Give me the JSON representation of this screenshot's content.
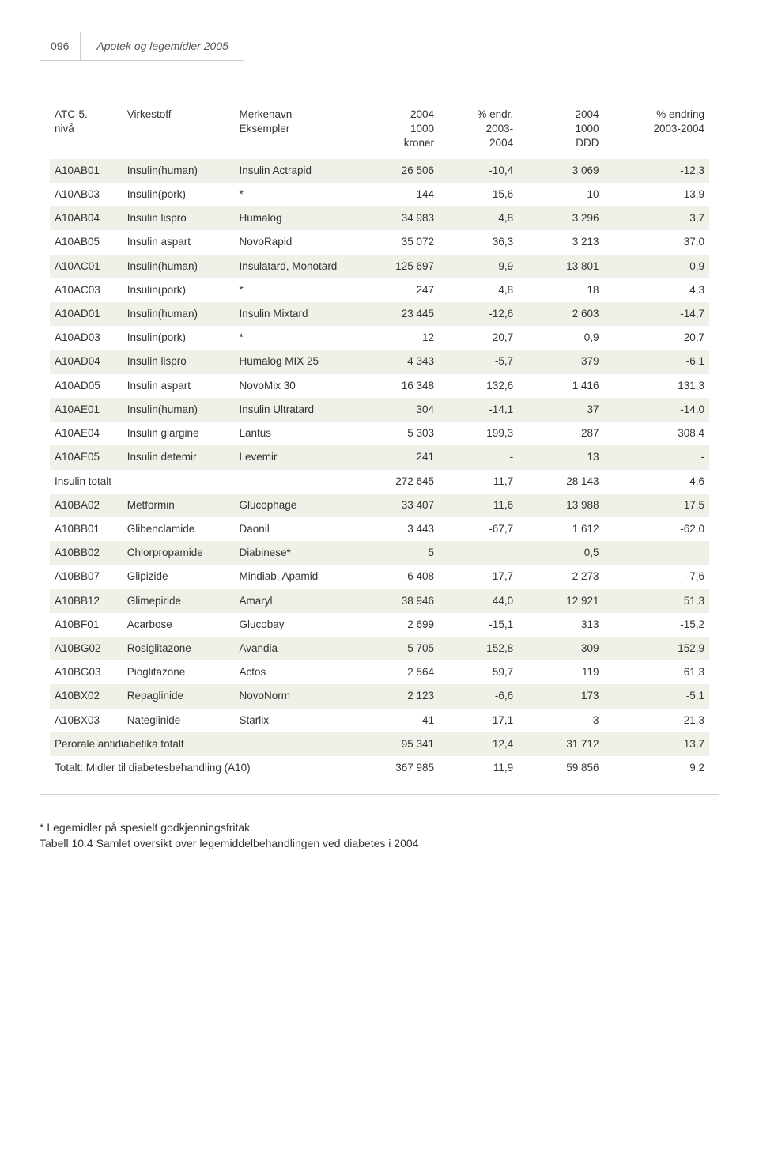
{
  "header": {
    "page_number": "096",
    "title": "Apotek og legemidler 2005"
  },
  "table": {
    "type": "table",
    "background_color": "#ffffff",
    "band_color": "#eef1e7",
    "border_color": "#d0d0d0",
    "text_color": "#333333",
    "font_size": 13.5,
    "columns": [
      {
        "lines": [
          "ATC-5.",
          "nivå"
        ],
        "align": "left"
      },
      {
        "lines": [
          "Virkestoff"
        ],
        "align": "left"
      },
      {
        "lines": [
          "Merkenavn",
          "Eksempler"
        ],
        "align": "left"
      },
      {
        "lines": [
          "2004",
          "1000",
          "kroner"
        ],
        "align": "right"
      },
      {
        "lines": [
          "% endr.",
          "2003-",
          "2004"
        ],
        "align": "right"
      },
      {
        "lines": [
          "2004",
          "1000",
          "DDD"
        ],
        "align": "right"
      },
      {
        "lines": [
          "% endring",
          "2003-2004"
        ],
        "align": "right"
      }
    ],
    "rows": [
      {
        "band": true,
        "cells": [
          "A10AB01",
          "Insulin(human)",
          "Insulin Actrapid",
          "26 506",
          "-10,4",
          "3 069",
          "-12,3"
        ]
      },
      {
        "band": false,
        "cells": [
          "A10AB03",
          "Insulin(pork)",
          "*",
          "144",
          "15,6",
          "10",
          "13,9"
        ]
      },
      {
        "band": true,
        "cells": [
          "A10AB04",
          "Insulin lispro",
          "Humalog",
          "34 983",
          "4,8",
          "3 296",
          "3,7"
        ]
      },
      {
        "band": false,
        "cells": [
          "A10AB05",
          "Insulin aspart",
          "NovoRapid",
          "35 072",
          "36,3",
          "3 213",
          "37,0"
        ]
      },
      {
        "band": true,
        "cells": [
          "A10AC01",
          "Insulin(human)",
          "Insulatard, Monotard",
          "125 697",
          "9,9",
          "13 801",
          "0,9"
        ]
      },
      {
        "band": false,
        "cells": [
          "A10AC03",
          "Insulin(pork)",
          "*",
          "247",
          "4,8",
          "18",
          "4,3"
        ]
      },
      {
        "band": true,
        "cells": [
          "A10AD01",
          "Insulin(human)",
          "Insulin Mixtard",
          "23 445",
          "-12,6",
          "2 603",
          "-14,7"
        ]
      },
      {
        "band": false,
        "cells": [
          "A10AD03",
          "Insulin(pork)",
          "*",
          "12",
          "20,7",
          "0,9",
          "20,7"
        ]
      },
      {
        "band": true,
        "cells": [
          "A10AD04",
          "Insulin lispro",
          "Humalog MIX 25",
          "4 343",
          "-5,7",
          "379",
          "-6,1"
        ]
      },
      {
        "band": false,
        "cells": [
          "A10AD05",
          "Insulin aspart",
          "NovoMix 30",
          "16 348",
          "132,6",
          "1 416",
          "131,3"
        ]
      },
      {
        "band": true,
        "cells": [
          "A10AE01",
          "Insulin(human)",
          "Insulin Ultratard",
          "304",
          "-14,1",
          "37",
          "-14,0"
        ]
      },
      {
        "band": false,
        "cells": [
          "A10AE04",
          "Insulin glargine",
          "Lantus",
          "5 303",
          "199,3",
          "287",
          "308,4"
        ]
      },
      {
        "band": true,
        "cells": [
          "A10AE05",
          "Insulin detemir",
          "Levemir",
          "241",
          "-",
          "13",
          "-"
        ]
      },
      {
        "band": false,
        "cells": [
          "Insulin totalt",
          "",
          "",
          "272 645",
          "11,7",
          "28 143",
          "4,6"
        ]
      },
      {
        "band": true,
        "cells": [
          "A10BA02",
          "Metformin",
          "Glucophage",
          "33 407",
          "11,6",
          "13 988",
          "17,5"
        ]
      },
      {
        "band": false,
        "cells": [
          "A10BB01",
          "Glibenclamide",
          "Daonil",
          "3 443",
          "-67,7",
          "1 612",
          "-62,0"
        ]
      },
      {
        "band": true,
        "cells": [
          "A10BB02",
          "Chlorpropamide",
          "Diabinese*",
          "5",
          "",
          "0,5",
          ""
        ]
      },
      {
        "band": false,
        "cells": [
          "A10BB07",
          "Glipizide",
          "Mindiab, Apamid",
          "6 408",
          "-17,7",
          "2 273",
          "-7,6"
        ]
      },
      {
        "band": true,
        "cells": [
          "A10BB12",
          "Glimepiride",
          "Amaryl",
          "38 946",
          "44,0",
          "12 921",
          "51,3"
        ]
      },
      {
        "band": false,
        "cells": [
          "A10BF01",
          "Acarbose",
          "Glucobay",
          "2 699",
          "-15,1",
          "313",
          "-15,2"
        ]
      },
      {
        "band": true,
        "cells": [
          "A10BG02",
          "Rosiglitazone",
          "Avandia",
          "5 705",
          "152,8",
          "309",
          "152,9"
        ]
      },
      {
        "band": false,
        "cells": [
          "A10BG03",
          "Pioglitazone",
          "Actos",
          "2 564",
          "59,7",
          "119",
          "61,3"
        ]
      },
      {
        "band": true,
        "cells": [
          "A10BX02",
          "Repaglinide",
          "NovoNorm",
          "2 123",
          "-6,6",
          "173",
          "-5,1"
        ]
      },
      {
        "band": false,
        "cells": [
          "A10BX03",
          "Nateglinide",
          "Starlix",
          "41",
          "-17,1",
          "3",
          "-21,3"
        ]
      },
      {
        "band": true,
        "span3": true,
        "cells": [
          "Perorale antidiabetika totalt",
          "",
          "",
          "95 341",
          "12,4",
          "31 712",
          "13,7"
        ]
      },
      {
        "band": false,
        "span3": true,
        "cells": [
          "Totalt: Midler til diabetesbehandling (A10)",
          "",
          "",
          "367 985",
          "11,9",
          "59 856",
          "9,2"
        ]
      }
    ]
  },
  "footnote": "* Legemidler på spesielt godkjenningsfritak",
  "caption": "Tabell 10.4 Samlet oversikt over legemiddelbehandlingen ved diabetes i 2004"
}
